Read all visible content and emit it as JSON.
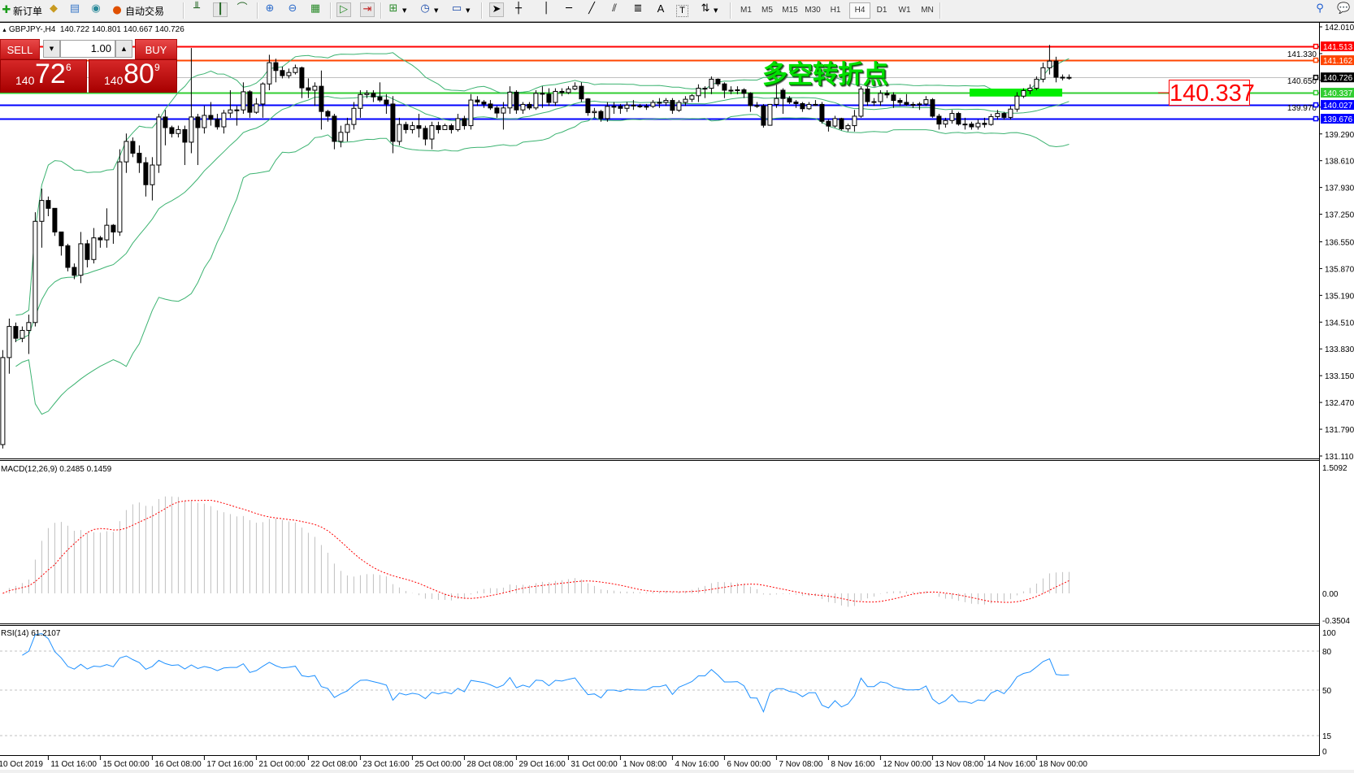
{
  "toolbar": {
    "new_order": "新订单",
    "auto_trading": "自动交易",
    "timeframes": [
      "M1",
      "M5",
      "M15",
      "M30",
      "H1",
      "H4",
      "D1",
      "W1",
      "MN"
    ],
    "active_timeframe": "H4",
    "icons": [
      "new-order-icon",
      "gold-icon",
      "navigator-icon",
      "signal-icon",
      "auto-trading-icon",
      "bar-chart-icon",
      "candle-chart-icon",
      "line-chart-icon",
      "zoom-in-icon",
      "zoom-out-icon",
      "tile-icon",
      "autoscroll-icon",
      "chart-shift-icon",
      "indicators-icon",
      "periods-icon",
      "templates-icon",
      "cursor-icon",
      "crosshair-icon",
      "vertical-line-icon",
      "horizontal-line-icon",
      "trendline-icon",
      "equidistant-channel-icon",
      "fibonacci-icon",
      "text-icon",
      "text-label-icon",
      "arrows-icon",
      "search-icon",
      "chat-icon"
    ]
  },
  "chart": {
    "symbol_info": "GBPJPY-,H4  140.722 140.801 140.667 140.726"
  },
  "trade_panel": {
    "sell_label": "SELL",
    "buy_label": "BUY",
    "volume": "1.00",
    "sell_price": {
      "prefix": "140",
      "big": "72",
      "sup": "6"
    },
    "buy_price": {
      "prefix": "140",
      "big": "80",
      "sup": "9"
    }
  },
  "annotation": {
    "text": "多空转折点",
    "color": "#00e000",
    "price_label": "140.337",
    "zone_color": "#00ee00"
  },
  "chart_data": {
    "type": "candlestick",
    "symbol": "GBPJPY-",
    "timeframe": "H4",
    "price_axis": {
      "range": [
        131.11,
        142.01
      ],
      "ticks": [
        "142.010",
        "141.330",
        "140.650",
        "139.970",
        "139.290",
        "138.610",
        "137.930",
        "137.250",
        "136.550",
        "135.870",
        "135.190",
        "134.510",
        "133.830",
        "133.150",
        "132.470",
        "131.790",
        "131.110"
      ]
    },
    "time_labels": [
      "10 Oct 2019",
      "11 Oct 16:00",
      "15 Oct 00:00",
      "16 Oct 08:00",
      "17 Oct 16:00",
      "21 Oct 00:00",
      "22 Oct 08:00",
      "23 Oct 16:00",
      "25 Oct 00:00",
      "28 Oct 08:00",
      "29 Oct 16:00",
      "31 Oct 00:00",
      "1 Nov 08:00",
      "4 Nov 16:00",
      "6 Nov 00:00",
      "7 Nov 08:00",
      "8 Nov 16:00",
      "12 Nov 00:00",
      "13 Nov 08:00",
      "14 Nov 16:00",
      "18 Nov 00:00"
    ],
    "horizontal_lines": [
      {
        "price": 141.513,
        "label": "141.513",
        "color": "#ff0000"
      },
      {
        "price": 141.162,
        "label": "141.162",
        "color": "#ff4500"
      },
      {
        "price": 140.726,
        "label": "140.726",
        "color": "#000000",
        "line_color": "#c0c0c0"
      },
      {
        "price": 140.337,
        "label": "140.337",
        "color": "#32cd32"
      },
      {
        "price": 140.027,
        "label": "140.027",
        "color": "#0000ff"
      },
      {
        "price": 139.676,
        "label": "139.676",
        "color": "#0000ff"
      }
    ],
    "zone": {
      "price_top": 140.44,
      "price_bottom": 140.24
    },
    "ohlc": [
      [
        131.4,
        133.8,
        131.3,
        133.61
      ],
      [
        133.61,
        134.6,
        133.2,
        134.4
      ],
      [
        134.4,
        134.5,
        134.0,
        134.1
      ],
      [
        134.1,
        134.4,
        134.0,
        134.3
      ],
      [
        134.3,
        134.7,
        133.7,
        134.5
      ],
      [
        134.5,
        137.3,
        134.4,
        137.07
      ],
      [
        137.07,
        137.9,
        136.4,
        137.6
      ],
      [
        137.6,
        137.7,
        137.2,
        137.4
      ],
      [
        137.4,
        137.4,
        136.7,
        136.8
      ],
      [
        136.8,
        136.8,
        136.2,
        136.45
      ],
      [
        136.45,
        136.5,
        135.8,
        135.9
      ],
      [
        135.9,
        136.0,
        135.6,
        135.7
      ],
      [
        135.7,
        136.8,
        135.5,
        136.5
      ],
      [
        136.5,
        136.6,
        135.9,
        136.1
      ],
      [
        136.1,
        136.9,
        136.0,
        136.65
      ],
      [
        136.65,
        136.7,
        136.4,
        136.6
      ],
      [
        136.6,
        137.4,
        136.4,
        136.97
      ],
      [
        136.97,
        137.0,
        136.5,
        136.8
      ],
      [
        136.8,
        138.9,
        136.7,
        138.58
      ],
      [
        138.58,
        139.3,
        138.3,
        139.1
      ],
      [
        139.1,
        139.2,
        138.7,
        138.8
      ],
      [
        138.8,
        139.0,
        138.3,
        138.56
      ],
      [
        138.56,
        138.7,
        137.7,
        138.0
      ],
      [
        138.0,
        138.7,
        137.6,
        138.5
      ],
      [
        138.5,
        139.8,
        138.3,
        139.72
      ],
      [
        139.72,
        139.9,
        139.0,
        139.45
      ],
      [
        139.45,
        139.5,
        139.2,
        139.3
      ],
      [
        139.3,
        139.5,
        139.2,
        139.4
      ],
      [
        139.4,
        139.5,
        138.5,
        139.08
      ],
      [
        139.08,
        141.47,
        138.8,
        139.72
      ],
      [
        139.72,
        139.8,
        138.5,
        139.45
      ],
      [
        139.45,
        140.0,
        139.3,
        139.76
      ],
      [
        139.76,
        140.1,
        139.5,
        139.66
      ],
      [
        139.66,
        139.8,
        139.4,
        139.47
      ],
      [
        139.47,
        139.9,
        139.3,
        139.82
      ],
      [
        139.82,
        140.4,
        139.7,
        139.9
      ],
      [
        139.9,
        140.0,
        139.5,
        139.9
      ],
      [
        139.9,
        140.6,
        139.8,
        140.36
      ],
      [
        140.36,
        140.4,
        139.7,
        139.84
      ],
      [
        139.84,
        140.2,
        139.8,
        140.05
      ],
      [
        140.05,
        140.6,
        139.7,
        140.56
      ],
      [
        140.56,
        141.3,
        140.4,
        141.1
      ],
      [
        141.1,
        141.2,
        140.6,
        140.9
      ],
      [
        140.9,
        141.0,
        140.7,
        140.77
      ],
      [
        140.77,
        140.95,
        140.7,
        140.85
      ],
      [
        140.85,
        141.05,
        140.8,
        140.97
      ],
      [
        140.97,
        141.0,
        140.2,
        140.46
      ],
      [
        140.46,
        140.7,
        140.2,
        140.4
      ],
      [
        140.4,
        140.6,
        140.0,
        140.5
      ],
      [
        140.5,
        140.9,
        139.4,
        139.86
      ],
      [
        139.86,
        139.9,
        139.6,
        139.74
      ],
      [
        139.74,
        139.8,
        138.9,
        139.1
      ],
      [
        139.1,
        139.5,
        138.95,
        139.33
      ],
      [
        139.33,
        139.7,
        139.1,
        139.53
      ],
      [
        139.53,
        140.1,
        139.4,
        139.94
      ],
      [
        139.94,
        140.4,
        139.7,
        140.29
      ],
      [
        140.29,
        140.4,
        140.2,
        140.32
      ],
      [
        140.32,
        140.4,
        140.1,
        140.23
      ],
      [
        140.23,
        140.6,
        140.1,
        140.15
      ],
      [
        140.15,
        140.3,
        139.8,
        140.05
      ],
      [
        140.05,
        140.25,
        138.8,
        139.1
      ],
      [
        139.1,
        139.7,
        139.0,
        139.53
      ],
      [
        139.53,
        139.6,
        139.3,
        139.4
      ],
      [
        139.4,
        139.6,
        139.3,
        139.5
      ],
      [
        139.5,
        139.8,
        139.2,
        139.43
      ],
      [
        139.43,
        139.5,
        139.0,
        139.16
      ],
      [
        139.16,
        139.6,
        138.9,
        139.5
      ],
      [
        139.5,
        139.6,
        139.3,
        139.4
      ],
      [
        139.4,
        139.55,
        139.4,
        139.5
      ],
      [
        139.5,
        139.55,
        139.3,
        139.4
      ],
      [
        139.4,
        139.8,
        139.35,
        139.68
      ],
      [
        139.68,
        139.75,
        139.4,
        139.5
      ],
      [
        139.5,
        140.3,
        139.4,
        140.15
      ],
      [
        140.15,
        140.25,
        140.0,
        140.1
      ],
      [
        140.1,
        140.15,
        139.95,
        140.05
      ],
      [
        140.05,
        140.15,
        139.9,
        139.95
      ],
      [
        139.95,
        140.0,
        139.7,
        139.82
      ],
      [
        139.82,
        140.1,
        139.4,
        139.95
      ],
      [
        139.95,
        140.5,
        139.8,
        140.35
      ],
      [
        140.35,
        140.4,
        139.8,
        139.9
      ],
      [
        139.9,
        140.1,
        139.8,
        140.04
      ],
      [
        140.04,
        140.1,
        139.9,
        139.95
      ],
      [
        139.95,
        140.4,
        139.9,
        140.32
      ],
      [
        140.32,
        140.5,
        139.95,
        140.3
      ],
      [
        140.3,
        140.45,
        140.0,
        140.09
      ],
      [
        140.09,
        140.45,
        140.0,
        140.37
      ],
      [
        140.37,
        140.45,
        140.25,
        140.34
      ],
      [
        140.34,
        140.5,
        140.3,
        140.43
      ],
      [
        140.43,
        140.6,
        140.4,
        140.5
      ],
      [
        140.5,
        140.6,
        140.1,
        140.18
      ],
      [
        140.18,
        140.2,
        139.75,
        139.83
      ],
      [
        139.83,
        139.95,
        139.7,
        139.86
      ],
      [
        139.86,
        139.9,
        139.6,
        139.68
      ],
      [
        139.68,
        140.1,
        139.6,
        139.99
      ],
      [
        139.99,
        140.1,
        139.8,
        139.99
      ],
      [
        139.99,
        140.05,
        139.8,
        139.94
      ],
      [
        139.94,
        140.1,
        139.85,
        140.02
      ],
      [
        140.02,
        140.15,
        139.9,
        140.0
      ],
      [
        140.0,
        140.05,
        139.95,
        139.99
      ],
      [
        139.99,
        140.05,
        139.9,
        139.99
      ],
      [
        139.99,
        140.15,
        139.95,
        140.09
      ],
      [
        140.09,
        140.2,
        139.95,
        140.09
      ],
      [
        140.09,
        140.2,
        140.0,
        140.14
      ],
      [
        140.14,
        140.2,
        139.8,
        139.89
      ],
      [
        139.89,
        140.15,
        139.85,
        140.09
      ],
      [
        140.09,
        140.25,
        140.0,
        140.17
      ],
      [
        140.17,
        140.3,
        140.1,
        140.26
      ],
      [
        140.26,
        140.55,
        140.1,
        140.45
      ],
      [
        140.45,
        140.5,
        140.2,
        140.45
      ],
      [
        140.45,
        140.75,
        140.3,
        140.68
      ],
      [
        140.68,
        140.7,
        140.5,
        140.56
      ],
      [
        140.56,
        140.6,
        140.2,
        140.4
      ],
      [
        140.4,
        140.5,
        140.3,
        140.4
      ],
      [
        140.4,
        140.5,
        140.3,
        140.41
      ],
      [
        140.41,
        140.45,
        140.2,
        140.32
      ],
      [
        140.32,
        140.35,
        139.85,
        140.01
      ],
      [
        140.01,
        140.1,
        139.95,
        140.0
      ],
      [
        140.0,
        140.05,
        139.45,
        139.51
      ],
      [
        139.51,
        140.05,
        139.5,
        140.04
      ],
      [
        140.04,
        140.55,
        139.95,
        140.19
      ],
      [
        140.4,
        140.45,
        139.8,
        140.19
      ],
      [
        140.19,
        140.25,
        140.05,
        140.1
      ],
      [
        140.1,
        140.15,
        139.95,
        140.06
      ],
      [
        140.06,
        140.1,
        139.85,
        139.93
      ],
      [
        139.93,
        140.1,
        139.9,
        140.04
      ],
      [
        140.04,
        140.15,
        140.0,
        140.04
      ],
      [
        140.04,
        140.1,
        139.55,
        139.61
      ],
      [
        139.61,
        139.65,
        139.35,
        139.49
      ],
      [
        139.49,
        139.75,
        139.45,
        139.68
      ],
      [
        139.68,
        139.7,
        139.38,
        139.42
      ],
      [
        139.42,
        139.55,
        139.35,
        139.5
      ],
      [
        139.5,
        139.9,
        139.35,
        139.74
      ],
      [
        139.74,
        140.5,
        139.7,
        140.43
      ],
      [
        140.43,
        140.5,
        140.0,
        140.11
      ],
      [
        140.11,
        140.2,
        140.0,
        140.11
      ],
      [
        140.11,
        140.4,
        140.0,
        140.32
      ],
      [
        140.32,
        140.4,
        140.2,
        140.28
      ],
      [
        140.28,
        140.35,
        139.95,
        140.14
      ],
      [
        140.14,
        140.2,
        140.0,
        140.09
      ],
      [
        140.09,
        140.3,
        140.0,
        140.04
      ],
      [
        140.04,
        140.1,
        139.95,
        140.04
      ],
      [
        140.04,
        140.1,
        139.9,
        140.05
      ],
      [
        140.05,
        140.25,
        140.0,
        140.16
      ],
      [
        140.16,
        140.2,
        139.7,
        139.74
      ],
      [
        139.74,
        139.8,
        139.4,
        139.54
      ],
      [
        139.54,
        139.7,
        139.45,
        139.63
      ],
      [
        139.63,
        139.9,
        139.55,
        139.81
      ],
      [
        139.81,
        139.85,
        139.5,
        139.54
      ],
      [
        139.54,
        139.7,
        139.4,
        139.54
      ],
      [
        139.54,
        139.6,
        139.4,
        139.47
      ],
      [
        139.47,
        139.65,
        139.4,
        139.56
      ],
      [
        139.56,
        139.7,
        139.45,
        139.53
      ],
      [
        139.53,
        139.8,
        139.5,
        139.73
      ],
      [
        139.73,
        139.9,
        139.65,
        139.81
      ],
      [
        139.81,
        139.85,
        139.65,
        139.71
      ],
      [
        139.71,
        140.0,
        139.65,
        139.92
      ],
      [
        139.92,
        140.35,
        139.85,
        140.25
      ],
      [
        140.25,
        140.45,
        140.2,
        140.39
      ],
      [
        140.39,
        140.55,
        140.3,
        140.45
      ],
      [
        140.45,
        140.75,
        140.4,
        140.68
      ],
      [
        140.68,
        141.1,
        140.6,
        140.97
      ],
      [
        140.97,
        141.55,
        140.8,
        141.14
      ],
      [
        141.14,
        141.25,
        140.6,
        140.73
      ],
      [
        140.73,
        140.8,
        140.65,
        140.71
      ],
      [
        140.722,
        140.801,
        140.667,
        140.726
      ]
    ],
    "bollinger": {
      "period": 20,
      "deviation": 2,
      "color": "#3cb371"
    },
    "macd": {
      "label": "MACD(12,26,9) 0.2485 0.1459",
      "fast": 12,
      "slow": 26,
      "signal": 9,
      "axis_labels": [
        "1.5092",
        "0.00",
        "-0.3504"
      ],
      "range": [
        -0.3504,
        1.5092
      ],
      "histogram_color": "#c0c0c0",
      "signal_color": "#ff0000"
    },
    "rsi": {
      "label": "RSI(14) 61.2107",
      "period": 14,
      "levels": [
        80,
        50,
        15
      ],
      "axis_labels": [
        "100",
        "80",
        "50",
        "15",
        "0"
      ],
      "range": [
        0,
        100
      ],
      "color": "#1e90ff"
    }
  }
}
